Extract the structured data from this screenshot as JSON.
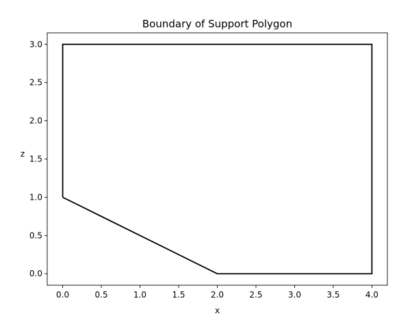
{
  "chart_data": {
    "type": "line",
    "title": "Boundary of Support Polygon",
    "xlabel": "x",
    "ylabel": "z",
    "xlim": [
      -0.2,
      4.2
    ],
    "ylim": [
      -0.15,
      3.15
    ],
    "xticks": [
      0.0,
      0.5,
      1.0,
      1.5,
      2.0,
      2.5,
      3.0,
      3.5,
      4.0
    ],
    "xtick_labels": [
      "0.0",
      "0.5",
      "1.0",
      "1.5",
      "2.0",
      "2.5",
      "3.0",
      "3.5",
      "4.0"
    ],
    "yticks": [
      0.0,
      0.5,
      1.0,
      1.5,
      2.0,
      2.5,
      3.0
    ],
    "ytick_labels": [
      "0.0",
      "0.5",
      "1.0",
      "1.5",
      "2.0",
      "2.5",
      "3.0"
    ],
    "grid": false,
    "legend": false,
    "series": [
      {
        "color": "#000000",
        "x": [
          0,
          2,
          4,
          4,
          0,
          0
        ],
        "y": [
          1,
          0,
          0,
          3,
          3,
          1
        ]
      }
    ]
  }
}
